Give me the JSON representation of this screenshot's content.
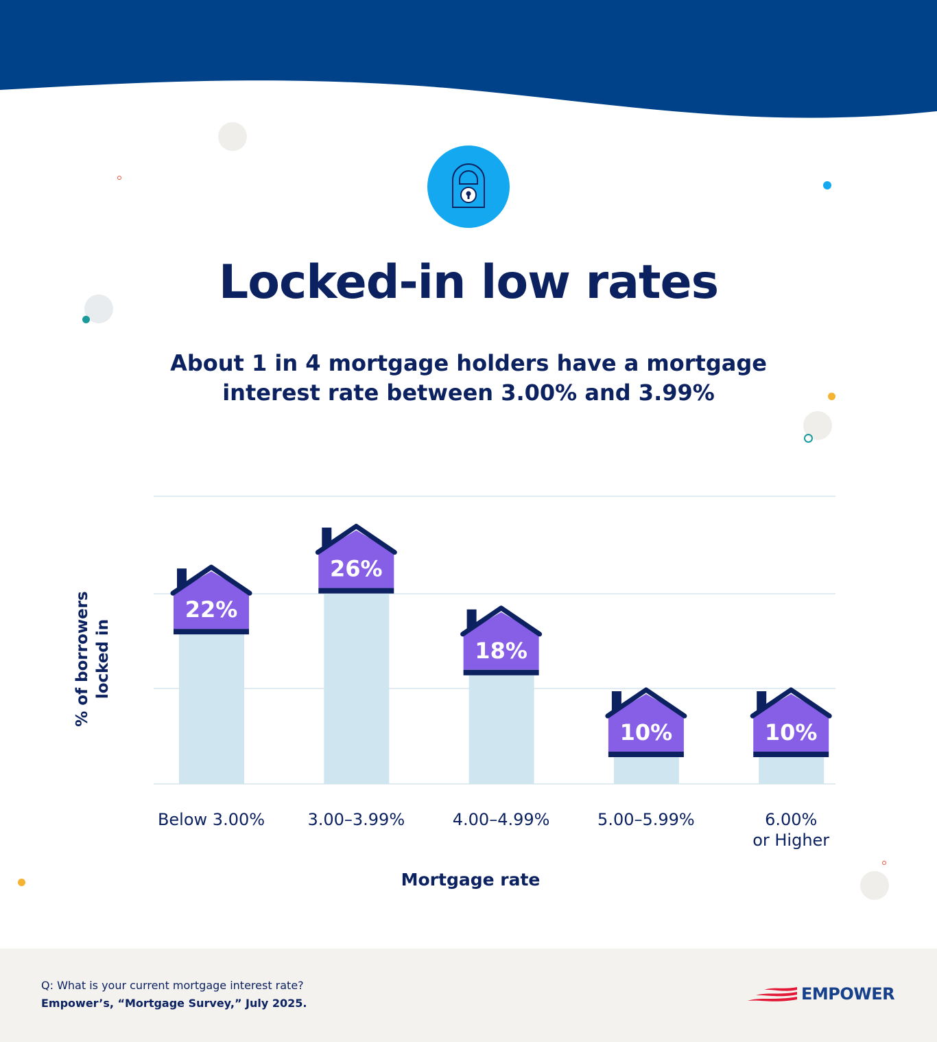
{
  "title": "Locked-in low rates",
  "subtitle": "About 1 in 4 mortgage holders have a mortgage interest rate between 3.00% and 3.99%",
  "chart_data": {
    "type": "bar",
    "categories": [
      "Below 3.00%",
      "3.00–3.99%",
      "4.00–4.99%",
      "5.00–5.99%",
      "6.00% or Higher"
    ],
    "values": [
      22,
      26,
      18,
      10,
      10
    ],
    "data_labels": [
      "22%",
      "26%",
      "18%",
      "10%",
      "10%"
    ],
    "xlabel": "Mortgage rate",
    "ylabel": "% of borrowers locked in",
    "grid": true,
    "legend": "none"
  },
  "footer": {
    "question": "Q: What is your current mortgage interest rate?",
    "source": "Empower’s, “Mortgage Survey,” July 2025.",
    "logo_text": "EMPOWER"
  },
  "colors": {
    "header": "#00428a",
    "title": "#0b2160",
    "house": "#875fe6",
    "bar": "#cfe5ef",
    "lock_circle": "#13a8ef",
    "footer_bg": "#f3f2ef"
  }
}
